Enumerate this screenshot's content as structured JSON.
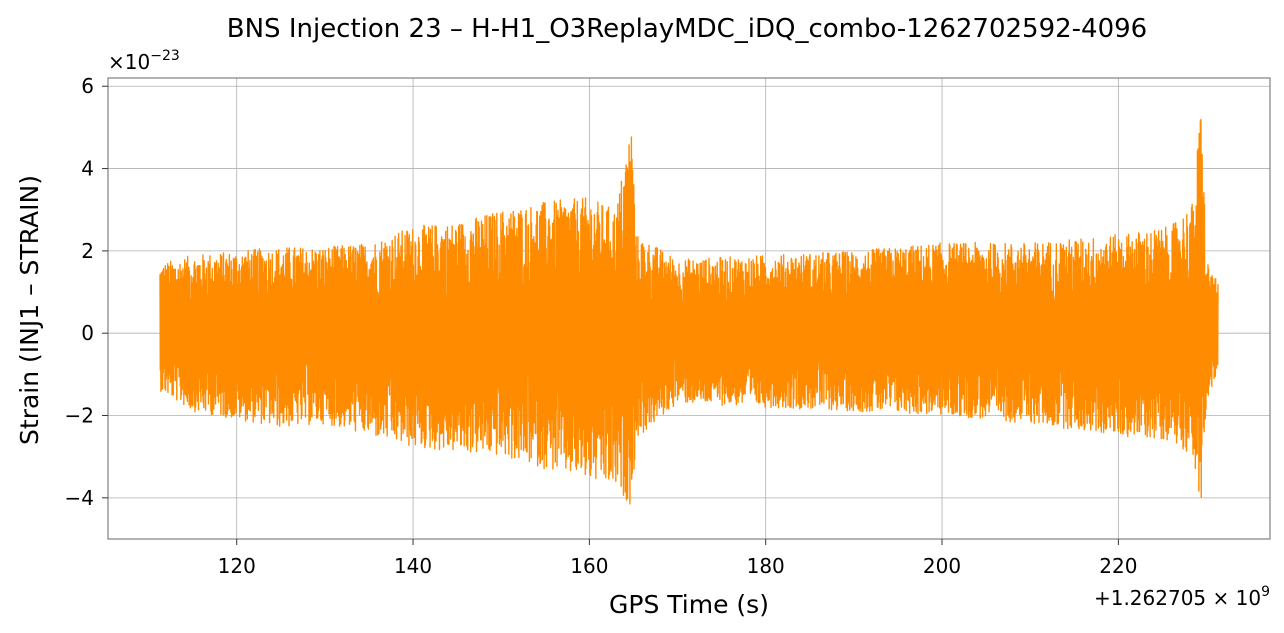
{
  "chart_data": {
    "type": "line",
    "title": "BNS Injection 23 – H-H1_O3ReplayMDC_iDQ_combo-1262702592-4096",
    "xlabel": "GPS Time (s)",
    "ylabel": "Strain (INJ1 – STRAIN)",
    "x_offset_label": "+1.262705 × 10",
    "x_offset_exponent": "9",
    "y_scale_label": "×10",
    "y_scale_exponent": "−23",
    "xlim": [
      105.4,
      237.2
    ],
    "ylim": [
      -5.0,
      6.2
    ],
    "x_ticks": [
      120,
      140,
      160,
      180,
      200,
      220
    ],
    "x_tick_labels": [
      "120",
      "140",
      "160",
      "180",
      "200",
      "220"
    ],
    "y_ticks": [
      -4,
      -2,
      0,
      2,
      4,
      6
    ],
    "y_tick_labels": [
      "−4",
      "−2",
      "0",
      "2",
      "4",
      "6"
    ],
    "grid": true,
    "line_color": "#ff8c00",
    "x_start": 111.3,
    "x_end": 231.3,
    "envelope": [
      {
        "x": 111.3,
        "max": 1.7,
        "min": -1.4
      },
      {
        "x": 115,
        "max": 1.9,
        "min": -1.9
      },
      {
        "x": 120,
        "max": 2.0,
        "min": -2.1
      },
      {
        "x": 125,
        "max": 2.1,
        "min": -2.3
      },
      {
        "x": 130,
        "max": 2.1,
        "min": -2.2
      },
      {
        "x": 135,
        "max": 2.2,
        "min": -2.5
      },
      {
        "x": 140,
        "max": 2.6,
        "min": -2.8
      },
      {
        "x": 145,
        "max": 2.7,
        "min": -2.9
      },
      {
        "x": 150,
        "max": 3.0,
        "min": -3.0
      },
      {
        "x": 155,
        "max": 3.2,
        "min": -3.3
      },
      {
        "x": 160,
        "max": 3.3,
        "min": -3.6
      },
      {
        "x": 163,
        "max": 3.0,
        "min": -3.8
      },
      {
        "x": 164.8,
        "max": 5.2,
        "min": -4.2
      },
      {
        "x": 165.3,
        "max": 2.4,
        "min": -2.6
      },
      {
        "x": 170,
        "max": 1.8,
        "min": -1.7
      },
      {
        "x": 180,
        "max": 1.9,
        "min": -1.8
      },
      {
        "x": 190,
        "max": 2.0,
        "min": -1.9
      },
      {
        "x": 200,
        "max": 2.2,
        "min": -2.0
      },
      {
        "x": 210,
        "max": 2.2,
        "min": -2.2
      },
      {
        "x": 220,
        "max": 2.4,
        "min": -2.5
      },
      {
        "x": 226,
        "max": 2.6,
        "min": -2.6
      },
      {
        "x": 228.5,
        "max": 3.2,
        "min": -3.0
      },
      {
        "x": 229.4,
        "max": 5.7,
        "min": -4.5
      },
      {
        "x": 230,
        "max": 1.8,
        "min": -1.6
      },
      {
        "x": 231.3,
        "max": 1.2,
        "min": -1.0
      }
    ]
  }
}
